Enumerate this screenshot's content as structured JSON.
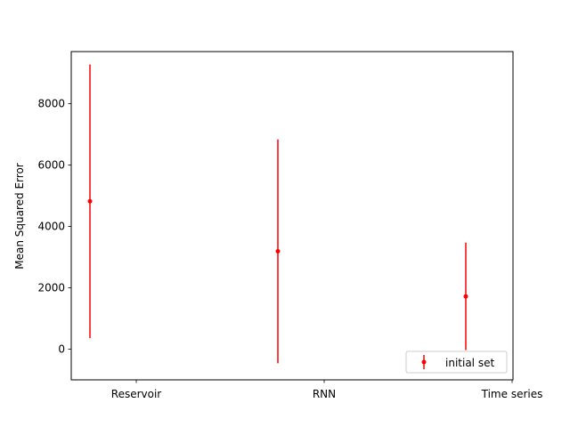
{
  "chart_data": {
    "type": "scatter",
    "title": "",
    "xlabel": "",
    "ylabel": "Mean Squared Error",
    "categories": [
      "Reservoir",
      "RNN",
      "Time series"
    ],
    "series": [
      {
        "name": "initial set",
        "color": "#ff0000",
        "marker": "point-with-vertical-error-bar",
        "values": [
          4820,
          3190,
          1720
        ],
        "error": [
          4460,
          3650,
          1750
        ]
      }
    ],
    "ylim": [
      -1000,
      9700
    ],
    "yticks": [
      0,
      2000,
      4000,
      6000,
      8000
    ],
    "grid": false,
    "legend_position": "lower-right"
  }
}
